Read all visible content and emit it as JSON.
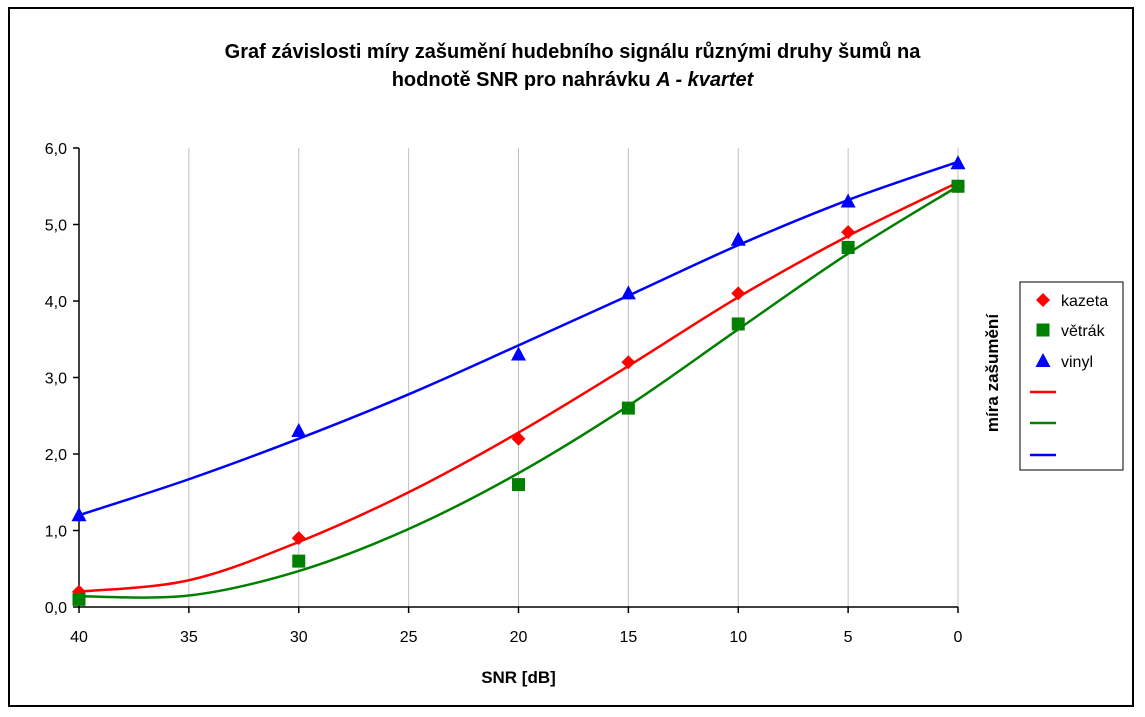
{
  "chart_data": {
    "type": "scatter",
    "title_line1": "Graf závislosti míry zašumění hudebního signálu různými druhy šumů na",
    "title_line2_prefix": "hodnotě SNR pro nahrávku ",
    "title_line2_emph": "A - kvartet",
    "xlabel": "SNR [dB]",
    "ylabel": "míra zašumění",
    "xlim": [
      40,
      0
    ],
    "ylim": [
      0,
      6
    ],
    "x_reversed": true,
    "x_ticks": [
      "40",
      "35",
      "30",
      "25",
      "20",
      "15",
      "10",
      "5",
      "0"
    ],
    "x_tick_values": [
      40,
      35,
      30,
      25,
      20,
      15,
      10,
      5,
      0
    ],
    "y_ticks": [
      "0,0",
      "1,0",
      "2,0",
      "3,0",
      "4,0",
      "5,0",
      "6,0"
    ],
    "y_tick_values": [
      0,
      1,
      2,
      3,
      4,
      5,
      6
    ],
    "grid": "vertical",
    "legend_position": "right",
    "series": [
      {
        "name": "kazeta",
        "marker": "diamond",
        "color": "#ff0000",
        "x": [
          40,
          30,
          20,
          15,
          10,
          5,
          0
        ],
        "y": [
          0.2,
          0.9,
          2.2,
          3.2,
          4.1,
          4.9,
          5.5
        ]
      },
      {
        "name": "větrák",
        "marker": "square",
        "color": "#008000",
        "x": [
          40,
          30,
          20,
          15,
          10,
          5,
          0
        ],
        "y": [
          0.1,
          0.6,
          1.6,
          2.6,
          3.7,
          4.7,
          5.5
        ]
      },
      {
        "name": "vinyl",
        "marker": "triangle",
        "color": "#0000ff",
        "x": [
          40,
          30,
          20,
          15,
          10,
          5,
          0
        ],
        "y": [
          1.2,
          2.3,
          3.3,
          4.1,
          4.8,
          5.3,
          5.8
        ]
      }
    ],
    "trendlines": [
      {
        "color": "#ff0000",
        "x": [
          40,
          35,
          30,
          25,
          20,
          15,
          10,
          5,
          0
        ],
        "y": [
          0.2,
          0.35,
          0.85,
          1.5,
          2.28,
          3.15,
          4.05,
          4.85,
          5.55
        ]
      },
      {
        "color": "#008000",
        "x": [
          40,
          35,
          30,
          25,
          20,
          15,
          10,
          5,
          0
        ],
        "y": [
          0.14,
          0.15,
          0.47,
          1.02,
          1.75,
          2.63,
          3.63,
          4.62,
          5.5
        ]
      },
      {
        "color": "#0000ff",
        "x": [
          40,
          35,
          30,
          25,
          20,
          15,
          10,
          5,
          0
        ],
        "y": [
          1.2,
          1.67,
          2.2,
          2.78,
          3.42,
          4.07,
          4.73,
          5.32,
          5.82
        ]
      }
    ]
  }
}
